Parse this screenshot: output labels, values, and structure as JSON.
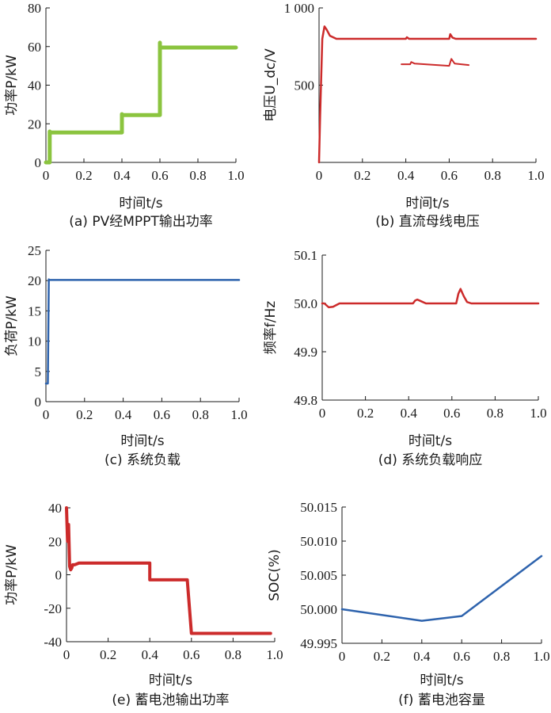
{
  "chart_data": [
    {
      "id": "a",
      "type": "line",
      "caption": "(a) PV经MPPT输出功率",
      "xlabel": "时间t/s",
      "ylabel": "功率P/kW",
      "xlim": [
        0,
        1.0
      ],
      "ylim": [
        0,
        80
      ],
      "xticks": [
        "0",
        "0.2",
        "0.4",
        "0.6",
        "0.8",
        "1.0"
      ],
      "yticks": [
        "0",
        "20",
        "40",
        "60",
        "80"
      ],
      "grid": false,
      "color": "#8bc43f",
      "line_width": 5,
      "series": [
        {
          "x": [
            0.0,
            0.02,
            0.02,
            0.02,
            0.02,
            0.4,
            0.4,
            0.4,
            0.6,
            0.6,
            0.6,
            1.0
          ],
          "y": [
            0,
            0,
            16,
            0,
            15.5,
            15.5,
            25,
            24.5,
            24.5,
            62,
            59.5,
            59.5
          ]
        }
      ]
    },
    {
      "id": "b",
      "type": "line",
      "caption": "(b) 直流母线电压",
      "xlabel": "时间t/s",
      "ylabel": "电压U_dc/V",
      "xlim": [
        0,
        1.0
      ],
      "ylim": [
        0,
        1000
      ],
      "xticks": [
        "0",
        "0.2",
        "0.4",
        "0.6",
        "0.8",
        "1.0"
      ],
      "yticks": [
        "500",
        "1 000"
      ],
      "ytick_values": [
        500,
        1000
      ],
      "grid": false,
      "color": "#cc2b2b",
      "line_width": 2.5,
      "series": [
        {
          "x": [
            0.0,
            0.005,
            0.015,
            0.025,
            0.035,
            0.05,
            0.08,
            0.12,
            0.2,
            0.4,
            0.405,
            0.415,
            0.6,
            0.605,
            0.615,
            0.63,
            1.0
          ],
          "y": [
            0,
            300,
            800,
            880,
            860,
            820,
            800,
            800,
            800,
            800,
            810,
            800,
            800,
            830,
            808,
            800,
            800
          ]
        }
      ],
      "inset": {
        "x": [
          0.38,
          0.42,
          0.425,
          0.44,
          0.6,
          0.61,
          0.625,
          0.69
        ],
        "y": [
          635,
          635,
          650,
          640,
          625,
          670,
          640,
          630
        ]
      }
    },
    {
      "id": "c",
      "type": "line",
      "caption": "(c) 系统负载",
      "xlabel": "时间t/s",
      "ylabel": "负荷P/kW",
      "xlim": [
        0,
        1.0
      ],
      "ylim": [
        0,
        25
      ],
      "xticks": [
        "0",
        "0.2",
        "0.4",
        "0.6",
        "0.8",
        "1.0"
      ],
      "yticks": [
        "0",
        "5",
        "10",
        "15",
        "20",
        "25"
      ],
      "grid": false,
      "color": "#2e63ad",
      "line_width": 2.5,
      "series": [
        {
          "x": [
            0.0,
            0.01,
            0.015,
            0.02,
            1.0
          ],
          "y": [
            3,
            3,
            20.2,
            20.1,
            20.1
          ]
        }
      ]
    },
    {
      "id": "d",
      "type": "line",
      "caption": "(d) 系统负载响应",
      "xlabel": "时间t/s",
      "ylabel": "频率f/Hz",
      "xlim": [
        0,
        1.0
      ],
      "ylim": [
        49.8,
        50.1
      ],
      "xticks": [
        "0",
        "0.2",
        "0.4",
        "0.6",
        "0.8",
        "1.0"
      ],
      "yticks": [
        "49.8",
        "49.9",
        "50.0",
        "50.1"
      ],
      "grid": false,
      "color": "#cc2b2b",
      "line_width": 2.5,
      "series": [
        {
          "x": [
            0.0,
            0.01,
            0.03,
            0.05,
            0.08,
            0.12,
            0.42,
            0.43,
            0.44,
            0.46,
            0.48,
            0.62,
            0.63,
            0.64,
            0.655,
            0.67,
            0.69,
            1.0
          ],
          "y": [
            50.0,
            50.0,
            49.992,
            49.993,
            50.0,
            50.0,
            50.0,
            50.006,
            50.008,
            50.004,
            50.0,
            50.0,
            50.02,
            50.03,
            50.015,
            50.003,
            50.0,
            50.0
          ]
        }
      ]
    },
    {
      "id": "e",
      "type": "line",
      "caption": "(e) 蓄电池输出功率",
      "xlabel": "时间t/s",
      "ylabel": "功率P/kW",
      "xlim": [
        0,
        1.0
      ],
      "ylim": [
        -40,
        40
      ],
      "xticks": [
        "0",
        "0.2",
        "0.4",
        "0.6",
        "0.8",
        "1.0"
      ],
      "yticks": [
        "-40",
        "-20",
        "0",
        "20",
        "40"
      ],
      "grid": false,
      "color": "#cc2b2b",
      "line_width": 4,
      "series": [
        {
          "x": [
            0.0,
            0.005,
            0.01,
            0.015,
            0.02,
            0.025,
            0.03,
            0.04,
            0.06,
            0.1,
            0.4,
            0.4,
            0.58,
            0.6,
            0.98
          ],
          "y": [
            40,
            20,
            30,
            5,
            3,
            4,
            6,
            6,
            7,
            7,
            7,
            -3,
            -3,
            -35,
            -35
          ]
        }
      ]
    },
    {
      "id": "f",
      "type": "line",
      "caption": "(f) 蓄电池容量",
      "xlabel": "时间t/s",
      "ylabel": "SOC(%)",
      "xlim": [
        0,
        1.0
      ],
      "ylim": [
        49.995,
        50.015
      ],
      "xticks": [
        "0",
        "0.2",
        "0.4",
        "0.6",
        "0.8",
        "1.0"
      ],
      "yticks": [
        "49.995",
        "50.000",
        "50.005",
        "50.010",
        "50.015"
      ],
      "grid": false,
      "color": "#2e63ad",
      "line_width": 2.5,
      "series": [
        {
          "x": [
            0.0,
            0.4,
            0.6,
            1.0
          ],
          "y": [
            50.0,
            49.9983,
            49.999,
            50.0078
          ]
        }
      ]
    }
  ]
}
